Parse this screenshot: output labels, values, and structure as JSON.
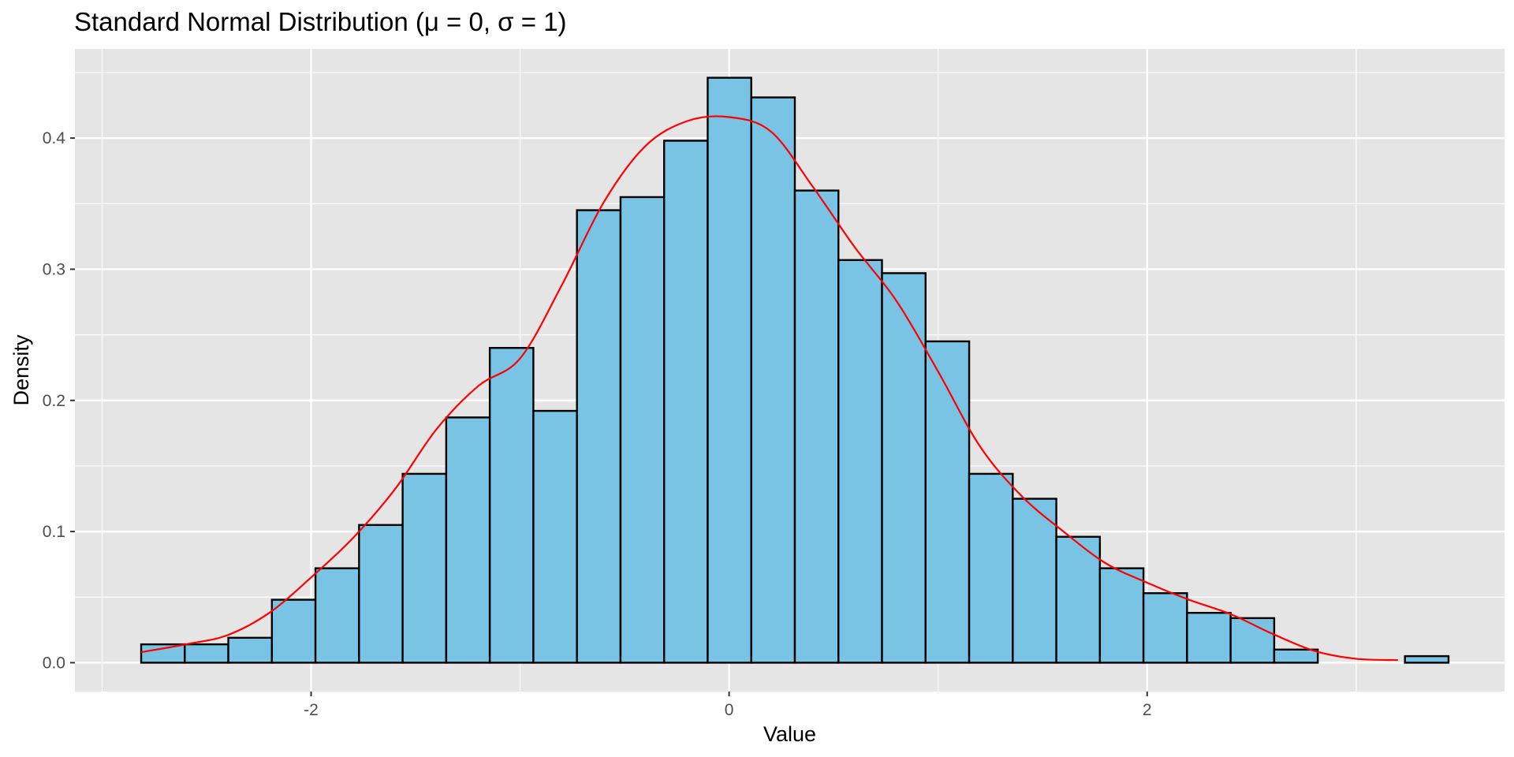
{
  "chart_data": {
    "type": "bar",
    "subtype": "histogram",
    "title": "Standard Normal Distribution (μ = 0, σ = 1)",
    "xlabel": "Value",
    "ylabel": "Density",
    "xlim": [
      -3.13,
      3.71
    ],
    "ylim": [
      -0.022,
      0.468
    ],
    "x_ticks": [
      -2,
      0,
      2
    ],
    "x_tick_labels": [
      "-2",
      "0",
      "2"
    ],
    "y_ticks": [
      0.0,
      0.1,
      0.2,
      0.3,
      0.4
    ],
    "y_tick_labels": [
      "0.0",
      "0.1",
      "0.2",
      "0.3",
      "0.4"
    ],
    "grid": true,
    "legend": "none",
    "colors": {
      "panel_background": "#e5e5e5",
      "grid": "#ffffff",
      "bar_fill": "#79c3e4",
      "bar_outline": "#000000",
      "density_line": "#ff0000",
      "tick_label": "#4d4d4d"
    },
    "bins": {
      "first_left_edge": -2.813,
      "width": 0.2085,
      "densities": [
        0.014,
        0.014,
        0.019,
        0.048,
        0.072,
        0.105,
        0.144,
        0.187,
        0.24,
        0.192,
        0.345,
        0.355,
        0.398,
        0.446,
        0.431,
        0.36,
        0.307,
        0.297,
        0.245,
        0.144,
        0.125,
        0.096,
        0.072,
        0.053,
        0.038,
        0.034,
        0.01,
        0.0,
        0.0,
        0.005
      ]
    },
    "density_curve": {
      "name": "density",
      "x": [
        -2.813,
        -2.6,
        -2.4,
        -2.2,
        -2.0,
        -1.8,
        -1.6,
        -1.4,
        -1.2,
        -1.0,
        -0.8,
        -0.6,
        -0.4,
        -0.2,
        0.0,
        0.2,
        0.4,
        0.6,
        0.8,
        1.0,
        1.2,
        1.4,
        1.6,
        1.8,
        2.0,
        2.2,
        2.4,
        2.6,
        2.8,
        3.0,
        3.2
      ],
      "y": [
        0.008,
        0.014,
        0.021,
        0.038,
        0.065,
        0.095,
        0.132,
        0.178,
        0.211,
        0.232,
        0.288,
        0.351,
        0.394,
        0.413,
        0.416,
        0.405,
        0.363,
        0.317,
        0.276,
        0.222,
        0.165,
        0.127,
        0.1,
        0.076,
        0.061,
        0.048,
        0.037,
        0.022,
        0.009,
        0.003,
        0.002
      ]
    }
  }
}
